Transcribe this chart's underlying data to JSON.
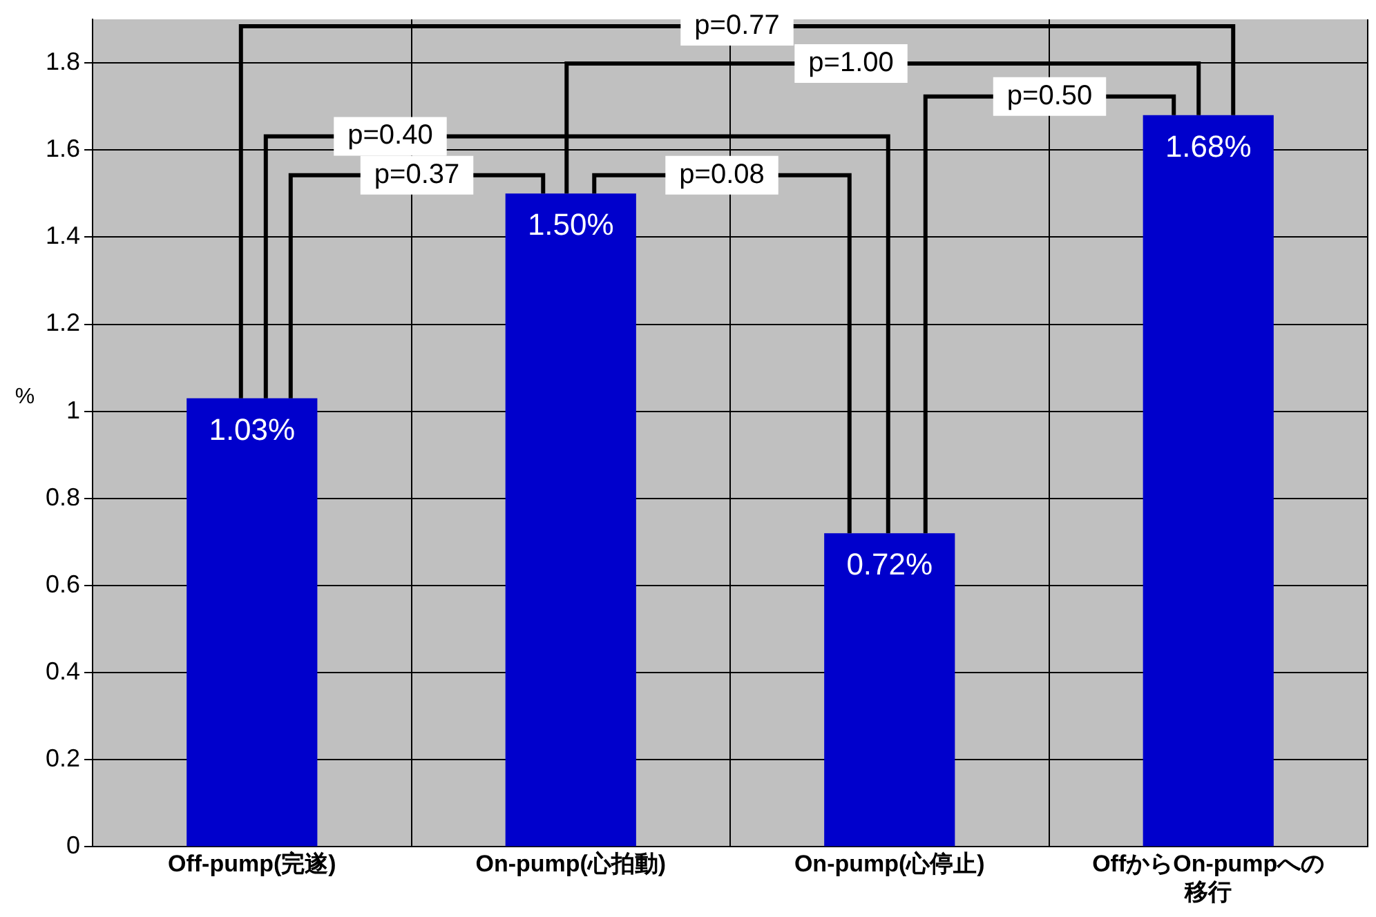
{
  "chart_data": {
    "type": "bar",
    "ylabel": "%",
    "categories": [
      "Off-pump(完遂)",
      "On-pump(心拍動)",
      "On-pump(心停止)",
      "OffからOn-pumpへの移行"
    ],
    "values": [
      1.03,
      1.5,
      0.72,
      1.68
    ],
    "color": "#0000cc",
    "value_labels": [
      "1.03%",
      "1.50%",
      "0.72%",
      "1.68%"
    ],
    "ylim": [
      0,
      1.9
    ],
    "yticks": [
      0,
      0.2,
      0.4,
      0.6,
      0.8,
      1,
      1.2,
      1.4,
      1.6,
      1.8
    ],
    "grid": true,
    "legend": false,
    "annotations": [
      "p=0.77",
      "p=1.00",
      "p=0.40",
      "p=0.50",
      "p=0.37",
      "p=0.08"
    ]
  }
}
